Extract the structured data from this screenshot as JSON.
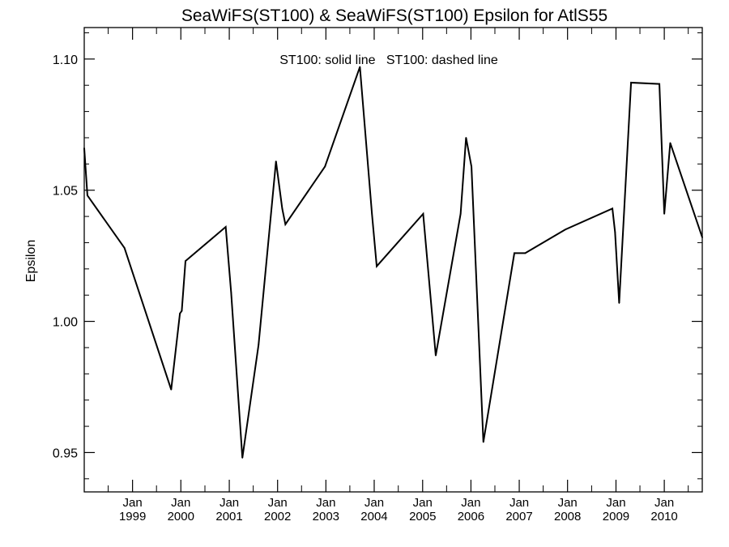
{
  "chart_data": {
    "type": "line",
    "title": "SeaWiFS(ST100) & SeaWiFS(ST100)  Epsilon for AtlS55",
    "ylabel": "Epsilon",
    "xlabel": "",
    "annotation": "ST100: solid line   ST100: dashed line",
    "xlim": [
      "1998-01-01",
      "2010-10-15"
    ],
    "ylim": [
      0.935,
      1.112
    ],
    "y_ticks": [
      0.95,
      1.0,
      1.05,
      1.1
    ],
    "y_tick_labels": [
      "0.95",
      "1.00",
      "1.05",
      "1.10"
    ],
    "y_minor_step": 0.01,
    "x_ticks": [
      {
        "date": "1999-01-01",
        "label_top": "Jan",
        "label_bottom": "1999"
      },
      {
        "date": "2000-01-01",
        "label_top": "Jan",
        "label_bottom": "2000"
      },
      {
        "date": "2001-01-01",
        "label_top": "Jan",
        "label_bottom": "2001"
      },
      {
        "date": "2002-01-01",
        "label_top": "Jan",
        "label_bottom": "2002"
      },
      {
        "date": "2003-01-01",
        "label_top": "Jan",
        "label_bottom": "2003"
      },
      {
        "date": "2004-01-01",
        "label_top": "Jan",
        "label_bottom": "2004"
      },
      {
        "date": "2005-01-01",
        "label_top": "Jan",
        "label_bottom": "2005"
      },
      {
        "date": "2006-01-01",
        "label_top": "Jan",
        "label_bottom": "2006"
      },
      {
        "date": "2007-01-01",
        "label_top": "Jan",
        "label_bottom": "2007"
      },
      {
        "date": "2008-01-01",
        "label_top": "Jan",
        "label_bottom": "2008"
      },
      {
        "date": "2009-01-01",
        "label_top": "Jan",
        "label_bottom": "2009"
      },
      {
        "date": "2010-01-01",
        "label_top": "Jan",
        "label_bottom": "2010"
      }
    ],
    "series": [
      {
        "line_style": "solid",
        "color": "#000000",
        "points": [
          {
            "x": "1998-01-01",
            "y": 1.066
          },
          {
            "x": "1998-01-25",
            "y": 1.048
          },
          {
            "x": "1998-11-01",
            "y": 1.028
          },
          {
            "x": "1999-10-20",
            "y": 0.974
          },
          {
            "x": "1999-12-25",
            "y": 1.003
          },
          {
            "x": "2000-01-08",
            "y": 1.004
          },
          {
            "x": "2000-02-05",
            "y": 1.023
          },
          {
            "x": "2000-12-05",
            "y": 1.036
          },
          {
            "x": "2001-01-15",
            "y": 1.011
          },
          {
            "x": "2001-04-10",
            "y": 0.948
          },
          {
            "x": "2001-08-10",
            "y": 0.991
          },
          {
            "x": "2001-12-20",
            "y": 1.061
          },
          {
            "x": "2002-02-05",
            "y": 1.043
          },
          {
            "x": "2002-03-01",
            "y": 1.037
          },
          {
            "x": "2002-12-25",
            "y": 1.059
          },
          {
            "x": "2003-09-15",
            "y": 1.097
          },
          {
            "x": "2003-12-15",
            "y": 1.041
          },
          {
            "x": "2004-01-20",
            "y": 1.021
          },
          {
            "x": "2005-01-05",
            "y": 1.041
          },
          {
            "x": "2005-04-10",
            "y": 0.987
          },
          {
            "x": "2005-10-15",
            "y": 1.041
          },
          {
            "x": "2005-11-25",
            "y": 1.07
          },
          {
            "x": "2006-01-05",
            "y": 1.059
          },
          {
            "x": "2006-04-05",
            "y": 0.954
          },
          {
            "x": "2006-11-25",
            "y": 1.026
          },
          {
            "x": "2007-02-15",
            "y": 1.026
          },
          {
            "x": "2007-12-15",
            "y": 1.035
          },
          {
            "x": "2008-12-05",
            "y": 1.043
          },
          {
            "x": "2008-12-25",
            "y": 1.034
          },
          {
            "x": "2009-01-25",
            "y": 1.007
          },
          {
            "x": "2009-04-25",
            "y": 1.091
          },
          {
            "x": "2009-11-25",
            "y": 1.0905
          },
          {
            "x": "2010-01-01",
            "y": 1.041
          },
          {
            "x": "2010-02-15",
            "y": 1.068
          },
          {
            "x": "2010-10-15",
            "y": 1.032
          }
        ]
      }
    ]
  }
}
